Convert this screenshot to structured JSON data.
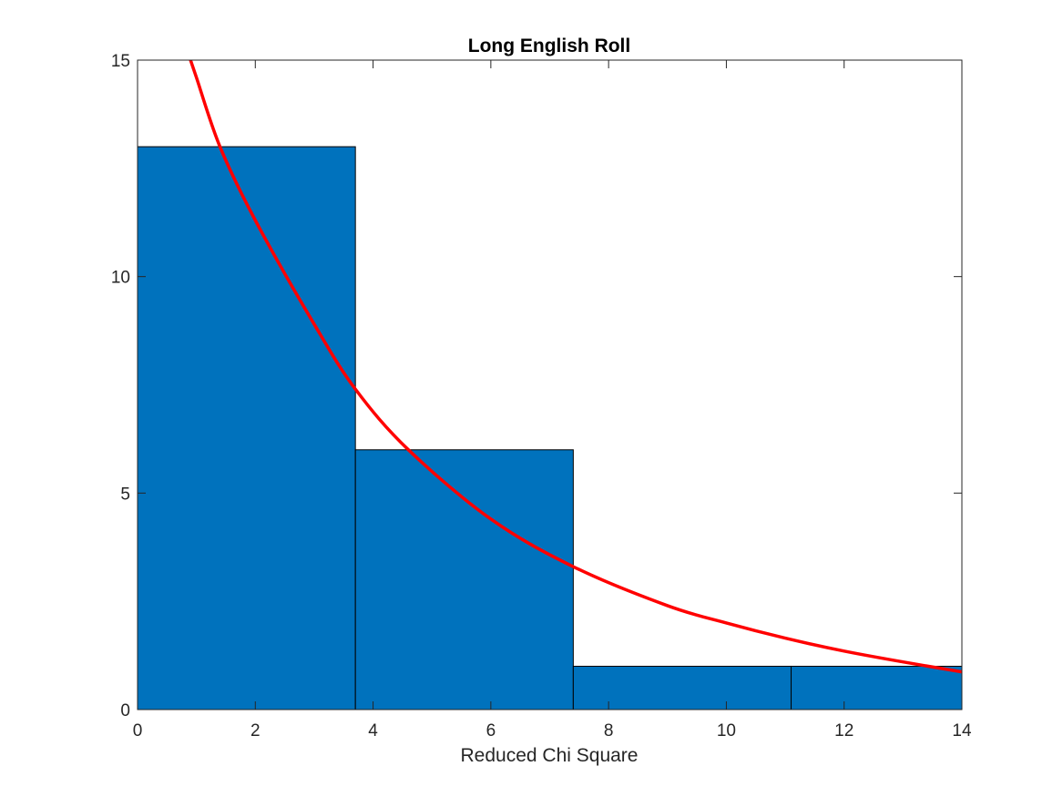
{
  "chart_data": {
    "type": "bar",
    "title": "Long English Roll",
    "xlabel": "Reduced Chi Square",
    "ylabel": "",
    "xlim": [
      0,
      14
    ],
    "ylim": [
      0,
      15
    ],
    "xticks": [
      0,
      2,
      4,
      6,
      8,
      10,
      12,
      14
    ],
    "yticks": [
      0,
      5,
      10,
      15
    ],
    "grid": false,
    "legend": "none",
    "bar_color": "#0072BD",
    "bar_edge_color": "#000000",
    "bins": [
      {
        "x_start": 0,
        "x_end": 3.7,
        "count": 13
      },
      {
        "x_start": 3.7,
        "x_end": 7.4,
        "count": 6
      },
      {
        "x_start": 7.4,
        "x_end": 11.1,
        "count": 1
      },
      {
        "x_start": 11.1,
        "x_end": 14.8,
        "count": 1
      }
    ],
    "curve": {
      "type": "line",
      "color": "#FF0000",
      "points": [
        {
          "x": 0.9,
          "y": 15.0
        },
        {
          "x": 1.0,
          "y": 14.6
        },
        {
          "x": 1.4,
          "y": 13.0
        },
        {
          "x": 2.0,
          "y": 11.3
        },
        {
          "x": 3.0,
          "y": 8.9
        },
        {
          "x": 3.7,
          "y": 7.4
        },
        {
          "x": 4.6,
          "y": 6.0
        },
        {
          "x": 6.0,
          "y": 4.4
        },
        {
          "x": 7.4,
          "y": 3.3
        },
        {
          "x": 9.0,
          "y": 2.4
        },
        {
          "x": 10.0,
          "y": 2.0
        },
        {
          "x": 11.0,
          "y": 1.65
        },
        {
          "x": 12.0,
          "y": 1.35
        },
        {
          "x": 13.0,
          "y": 1.1
        },
        {
          "x": 14.0,
          "y": 0.87
        }
      ]
    }
  }
}
